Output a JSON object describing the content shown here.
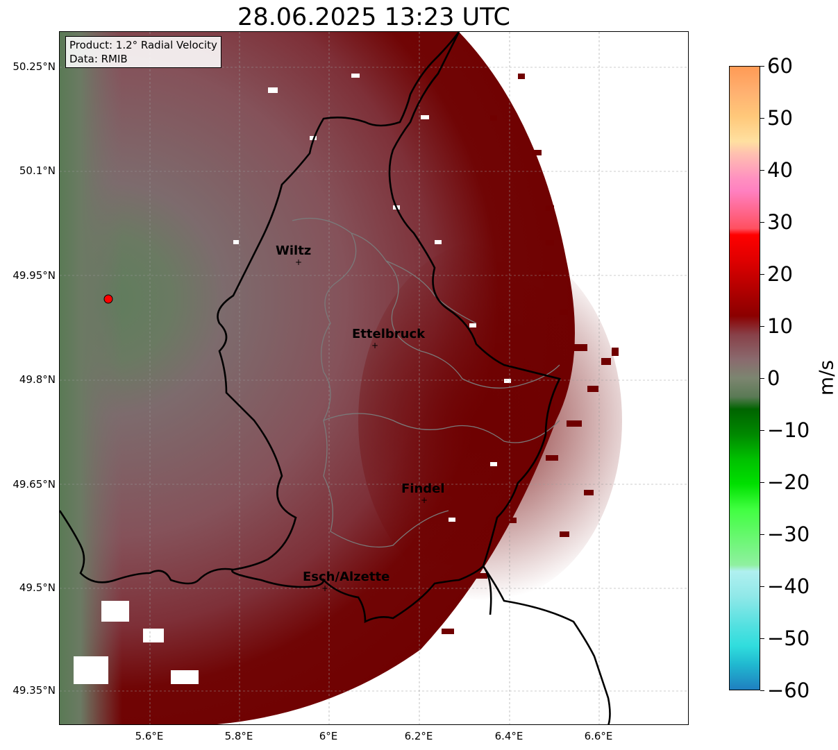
{
  "title": "28.06.2025 13:23 UTC",
  "info": {
    "product": "Product: 1.2° Radial Velocity",
    "data": "Data: RMIB"
  },
  "axes": {
    "y_ticks": [
      "50.25°N",
      "50.1°N",
      "49.95°N",
      "49.8°N",
      "49.65°N",
      "49.5°N",
      "49.35°N"
    ],
    "x_ticks": [
      "5.6°E",
      "5.8°E",
      "6°E",
      "6.2°E",
      "6.4°E",
      "6.6°E"
    ]
  },
  "cities": [
    {
      "name": "Wiltz"
    },
    {
      "name": "Ettelbruck"
    },
    {
      "name": "Findel"
    },
    {
      "name": "Esch/Alzette"
    }
  ],
  "colorbar": {
    "unit": "m/s",
    "ticks": [
      "60",
      "50",
      "40",
      "30",
      "20",
      "10",
      "0",
      "−10",
      "−20",
      "−30",
      "−40",
      "−50",
      "−60"
    ],
    "range": [
      -60,
      60
    ],
    "colors": {
      "pos_high": "#ff9a55",
      "pos_orange": "#ffc87a",
      "pos_pink": "#ff80c0",
      "pos_red": "#ff0000",
      "pos_darkred": "#8b0000",
      "near_zero": "#8a6a6e",
      "neg_green": "#006400",
      "neg_lime": "#00e000",
      "neg_cyan": "#30dddd",
      "neg_blue": "#1f7fc0"
    }
  },
  "radar_site_color": "#ff0000"
}
